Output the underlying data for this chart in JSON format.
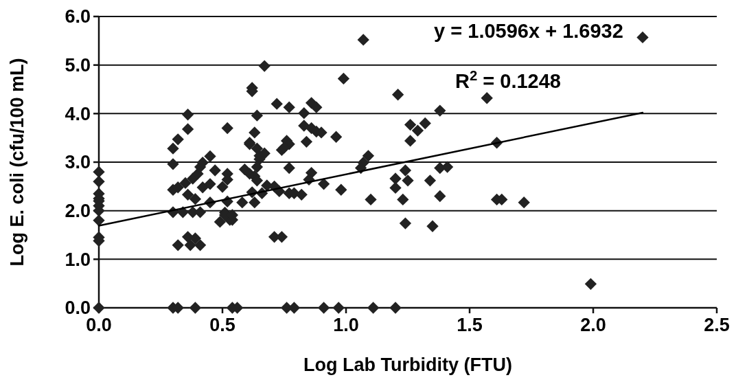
{
  "chart_data": {
    "type": "scatter",
    "xlabel": "Log Lab Turbidity (FTU)",
    "ylabel": "Log E. coli (cfu/100 mL)",
    "xlim": [
      0,
      2.5
    ],
    "ylim": [
      0,
      6
    ],
    "xticks": [
      {
        "value": 0,
        "label": "0.0"
      },
      {
        "value": 0.5,
        "label": "0.5"
      },
      {
        "value": 1,
        "label": "1.0"
      },
      {
        "value": 1.5,
        "label": "1.5"
      },
      {
        "value": 2,
        "label": "2.0"
      },
      {
        "value": 2.5,
        "label": "2.5"
      }
    ],
    "yticks": [
      {
        "value": 0,
        "label": "0.0"
      },
      {
        "value": 1,
        "label": "1.0"
      },
      {
        "value": 2,
        "label": "2.0"
      },
      {
        "value": 3,
        "label": "3.0"
      },
      {
        "value": 4,
        "label": "4.0"
      },
      {
        "value": 5,
        "label": "5.0"
      },
      {
        "value": 6,
        "label": "6.0"
      }
    ],
    "grid": "y",
    "marker": "diamond",
    "annotations": [
      "y = 1.0596x + 1.6932",
      "R$^{2}$ = 0.1248"
    ],
    "series": [
      {
        "color": "#222222",
        "x": [
          0,
          0,
          0,
          0,
          0,
          0,
          0,
          0,
          0,
          0,
          0,
          0.3,
          0.32,
          0.36,
          0.36,
          0.3,
          0.3,
          0.32,
          0.3,
          0.34,
          0.38,
          0.41,
          0.32,
          0.36,
          0.37,
          0.39,
          0.41,
          0.35,
          0.36,
          0.39,
          0.38,
          0.4,
          0.41,
          0.42,
          0.45,
          0.42,
          0.45,
          0.45,
          0.47,
          0.5,
          0.52,
          0.52,
          0.52,
          0.49,
          0.51,
          0.53,
          0.52,
          0.58,
          0.63,
          0.51,
          0.54,
          0.54,
          0.71,
          0.74,
          0.67,
          0.62,
          0.62,
          0.72,
          0.77,
          0.86,
          0.88,
          0.64,
          0.83,
          0.99,
          1.21,
          0.63,
          0.61,
          0.61,
          0.64,
          0.65,
          0.67,
          0.65,
          0.64,
          0.76,
          0.77,
          0.74,
          0.75,
          0.84,
          0.83,
          0.86,
          0.88,
          0.9,
          0.96,
          0.77,
          0.59,
          0.61,
          0.63,
          0.64,
          0.68,
          0.71,
          0.73,
          0.62,
          0.66,
          0.77,
          0.79,
          0.82,
          0.86,
          0.85,
          0.91,
          0.98,
          1.07,
          1.09,
          1.06,
          1.1,
          1.2,
          1.24,
          1.25,
          1.2,
          1.23,
          1.24,
          1.26,
          1.29,
          1.26,
          1.32,
          2.2,
          1.57,
          1.38,
          1.61,
          1.38,
          1.41,
          1.34,
          1.38,
          1.61,
          1.63,
          1.72,
          1.35,
          1.99,
          1.07,
          0.3,
          0.32,
          0.39,
          0.54,
          0.56,
          0.76,
          0.79,
          0.91,
          0.97,
          1.11,
          1.2
        ],
        "values": [
          2.8,
          2.6,
          2.35,
          2.25,
          2.2,
          2.1,
          2.0,
          1.8,
          1.45,
          1.38,
          0,
          3.28,
          3.47,
          3.98,
          3.68,
          2.96,
          2.43,
          2.48,
          1.97,
          1.97,
          1.97,
          1.97,
          1.29,
          1.46,
          1.29,
          1.43,
          1.29,
          2.57,
          2.33,
          2.24,
          2.66,
          2.76,
          2.9,
          2.99,
          3.12,
          2.48,
          2.55,
          2.17,
          2.83,
          2.49,
          3.7,
          2.76,
          2.19,
          1.77,
          1.96,
          1.81,
          2.64,
          2.17,
          2.17,
          1.91,
          1.81,
          1.91,
          1.46,
          1.46,
          4.98,
          4.53,
          4.46,
          4.2,
          4.13,
          4.22,
          4.13,
          3.96,
          4.01,
          4.72,
          4.39,
          3.61,
          3.4,
          3.37,
          3.28,
          3.13,
          3.18,
          3.06,
          2.9,
          3.44,
          3.37,
          3.25,
          3.3,
          3.42,
          3.75,
          3.7,
          3.63,
          3.61,
          3.52,
          2.88,
          2.85,
          2.76,
          2.71,
          2.62,
          2.52,
          2.5,
          2.4,
          2.38,
          2.36,
          2.36,
          2.36,
          2.33,
          2.78,
          2.64,
          2.55,
          2.43,
          2.99,
          3.13,
          2.88,
          2.23,
          2.66,
          2.83,
          2.62,
          2.47,
          2.23,
          1.74,
          3.77,
          3.65,
          3.44,
          3.8,
          5.57,
          4.32,
          4.06,
          3.4,
          2.88,
          2.9,
          2.62,
          2.3,
          2.23,
          2.23,
          2.17,
          1.68,
          0.49,
          5.52,
          0,
          0,
          0,
          0,
          0,
          0,
          0,
          0,
          0,
          0,
          0
        ]
      },
      {
        "type": "line",
        "color": "#000000",
        "marker": "none",
        "x": [
          0,
          2.2
        ],
        "values": [
          1.69,
          4.02
        ]
      }
    ]
  }
}
